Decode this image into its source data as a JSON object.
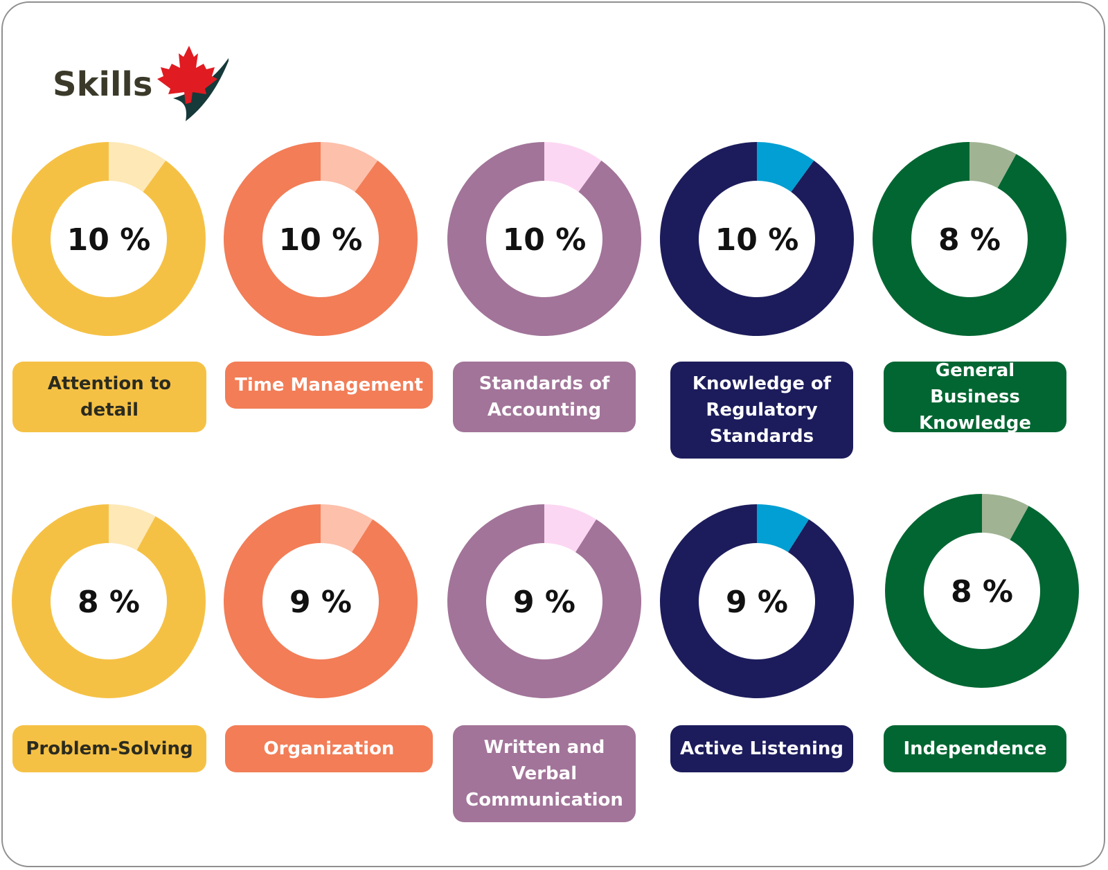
{
  "header": {
    "title": "Skills"
  },
  "colors": {
    "yellow": {
      "main": "#f5c145",
      "accent": "#fde8b6",
      "text": "#2b2b1f"
    },
    "orange": {
      "main": "#f27d57",
      "accent": "#fdc0ab",
      "text": "#ffffff"
    },
    "purple": {
      "main": "#a27499",
      "accent": "#fcd7f3",
      "text": "#ffffff"
    },
    "navy": {
      "main": "#1c1c5c",
      "accent": "#019fd3",
      "text": "#ffffff"
    },
    "green": {
      "main": "#026632",
      "accent": "#a0b393",
      "text": "#ffffff"
    }
  },
  "chart_data": {
    "type": "pie",
    "unit": "%",
    "items": [
      {
        "label": "Attention to detail",
        "value": 10,
        "color": "yellow"
      },
      {
        "label": "Time Management",
        "value": 10,
        "color": "orange"
      },
      {
        "label": "Standards of Accounting",
        "value": 10,
        "color": "purple"
      },
      {
        "label": "Knowledge of Regulatory Standards",
        "value": 10,
        "color": "navy"
      },
      {
        "label": "General Business Knowledge",
        "value": 8,
        "color": "green"
      },
      {
        "label": "Problem-Solving",
        "value": 8,
        "color": "yellow"
      },
      {
        "label": "Organization",
        "value": 9,
        "color": "orange"
      },
      {
        "label": "Written and Verbal Communication",
        "value": 9,
        "color": "purple"
      },
      {
        "label": "Active Listening",
        "value": 9,
        "color": "navy"
      },
      {
        "label": "Independence",
        "value": 8,
        "color": "green"
      }
    ]
  }
}
